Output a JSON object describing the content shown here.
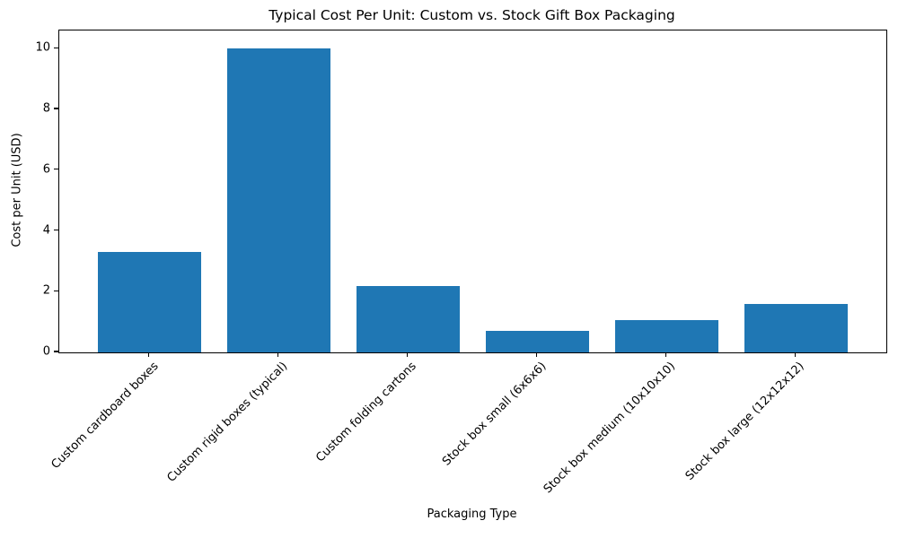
{
  "chart_data": {
    "type": "bar",
    "title": "Typical Cost Per Unit: Custom vs. Stock Gift Box Packaging",
    "categories": [
      "Custom cardboard boxes",
      "Custom rigid boxes (typical)",
      "Custom folding cartons",
      "Stock box small (6x6x6)",
      "Stock box medium (10x10x10)",
      "Stock box large (12x12x12)"
    ],
    "values": [
      3.3,
      10.0,
      2.2,
      0.7,
      1.05,
      1.6
    ],
    "xlabel": "Packaging Type",
    "ylabel": "Cost per Unit (USD)",
    "yticks": [
      0,
      2,
      4,
      6,
      8,
      10
    ],
    "ylim": [
      0,
      10.6
    ],
    "bar_color": "#1f77b4",
    "grid": false,
    "legend": "none",
    "x_tick_rotation_deg": 45
  }
}
